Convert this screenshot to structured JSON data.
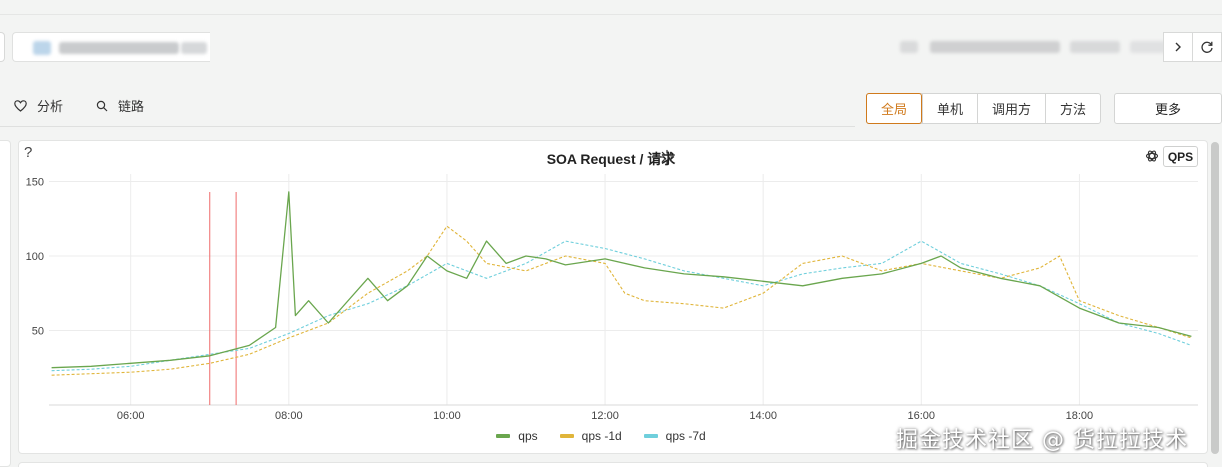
{
  "toolbar": {
    "analysis_label": "分析",
    "trace_label": "链路"
  },
  "view_tabs": [
    {
      "label": "全局",
      "active": true
    },
    {
      "label": "单机",
      "active": false
    },
    {
      "label": "调用方",
      "active": false
    },
    {
      "label": "方法",
      "active": false
    }
  ],
  "more_label": "更多",
  "panel": {
    "help": "?",
    "title": "SOA Request / 请求",
    "unit_button": "QPS"
  },
  "watermark": "掘金技术社区 @ 货拉拉技术",
  "colors": {
    "qps": "#6aa64e",
    "qps_1d": "#e0b53a",
    "qps_7d": "#6fcfdc",
    "marker": "#ef6b6b",
    "accent": "#d07a1c"
  },
  "chart_data": {
    "type": "line",
    "title": "SOA Request / 请求",
    "xlabel": "",
    "ylabel": "",
    "x_ticks": [
      "06:00",
      "08:00",
      "10:00",
      "12:00",
      "14:00",
      "16:00",
      "18:00"
    ],
    "y_ticks": [
      50,
      100,
      150
    ],
    "xlim": [
      "04:58",
      "19:30"
    ],
    "ylim": [
      0,
      155
    ],
    "grid": true,
    "legend_position": "bottom",
    "markers": [
      "07:00",
      "07:20"
    ],
    "series": [
      {
        "name": "qps",
        "style": "solid",
        "x": [
          "05:00",
          "05:30",
          "06:00",
          "06:30",
          "07:00",
          "07:30",
          "07:50",
          "08:00",
          "08:05",
          "08:15",
          "08:30",
          "09:00",
          "09:15",
          "09:30",
          "09:45",
          "10:00",
          "10:15",
          "10:30",
          "10:45",
          "11:00",
          "11:15",
          "11:30",
          "12:00",
          "12:30",
          "13:00",
          "13:30",
          "14:00",
          "14:30",
          "15:00",
          "15:30",
          "16:00",
          "16:15",
          "16:30",
          "17:00",
          "17:30",
          "18:00",
          "18:30",
          "19:00",
          "19:25"
        ],
        "y": [
          25,
          26,
          28,
          30,
          33,
          40,
          52,
          143,
          60,
          70,
          55,
          85,
          70,
          80,
          100,
          90,
          85,
          110,
          95,
          100,
          98,
          94,
          98,
          92,
          88,
          86,
          83,
          80,
          85,
          88,
          95,
          100,
          92,
          85,
          80,
          65,
          55,
          52,
          46
        ]
      },
      {
        "name": "qps -1d",
        "style": "dashed",
        "x": [
          "05:00",
          "05:30",
          "06:00",
          "06:30",
          "07:00",
          "07:30",
          "08:00",
          "08:30",
          "09:00",
          "09:30",
          "09:45",
          "10:00",
          "10:15",
          "10:30",
          "11:00",
          "11:30",
          "12:00",
          "12:15",
          "12:30",
          "13:00",
          "13:30",
          "14:00",
          "14:30",
          "15:00",
          "15:30",
          "16:00",
          "16:30",
          "17:00",
          "17:30",
          "17:45",
          "18:00",
          "18:30",
          "19:00",
          "19:25"
        ],
        "y": [
          20,
          21,
          22,
          24,
          28,
          34,
          45,
          55,
          75,
          90,
          100,
          120,
          110,
          95,
          90,
          100,
          95,
          75,
          70,
          68,
          65,
          75,
          95,
          100,
          90,
          95,
          90,
          85,
          92,
          100,
          70,
          60,
          52,
          45
        ]
      },
      {
        "name": "qps -7d",
        "style": "dashed",
        "x": [
          "05:00",
          "05:30",
          "06:00",
          "06:30",
          "07:00",
          "07:30",
          "08:00",
          "08:30",
          "09:00",
          "09:30",
          "10:00",
          "10:30",
          "11:00",
          "11:30",
          "12:00",
          "12:30",
          "13:00",
          "13:30",
          "14:00",
          "14:30",
          "15:00",
          "15:30",
          "16:00",
          "16:30",
          "17:00",
          "17:30",
          "18:00",
          "18:30",
          "19:00",
          "19:25"
        ],
        "y": [
          23,
          24,
          26,
          30,
          34,
          38,
          48,
          60,
          68,
          80,
          95,
          85,
          95,
          110,
          105,
          98,
          90,
          85,
          80,
          88,
          92,
          95,
          110,
          95,
          88,
          80,
          68,
          55,
          48,
          40
        ]
      }
    ]
  }
}
